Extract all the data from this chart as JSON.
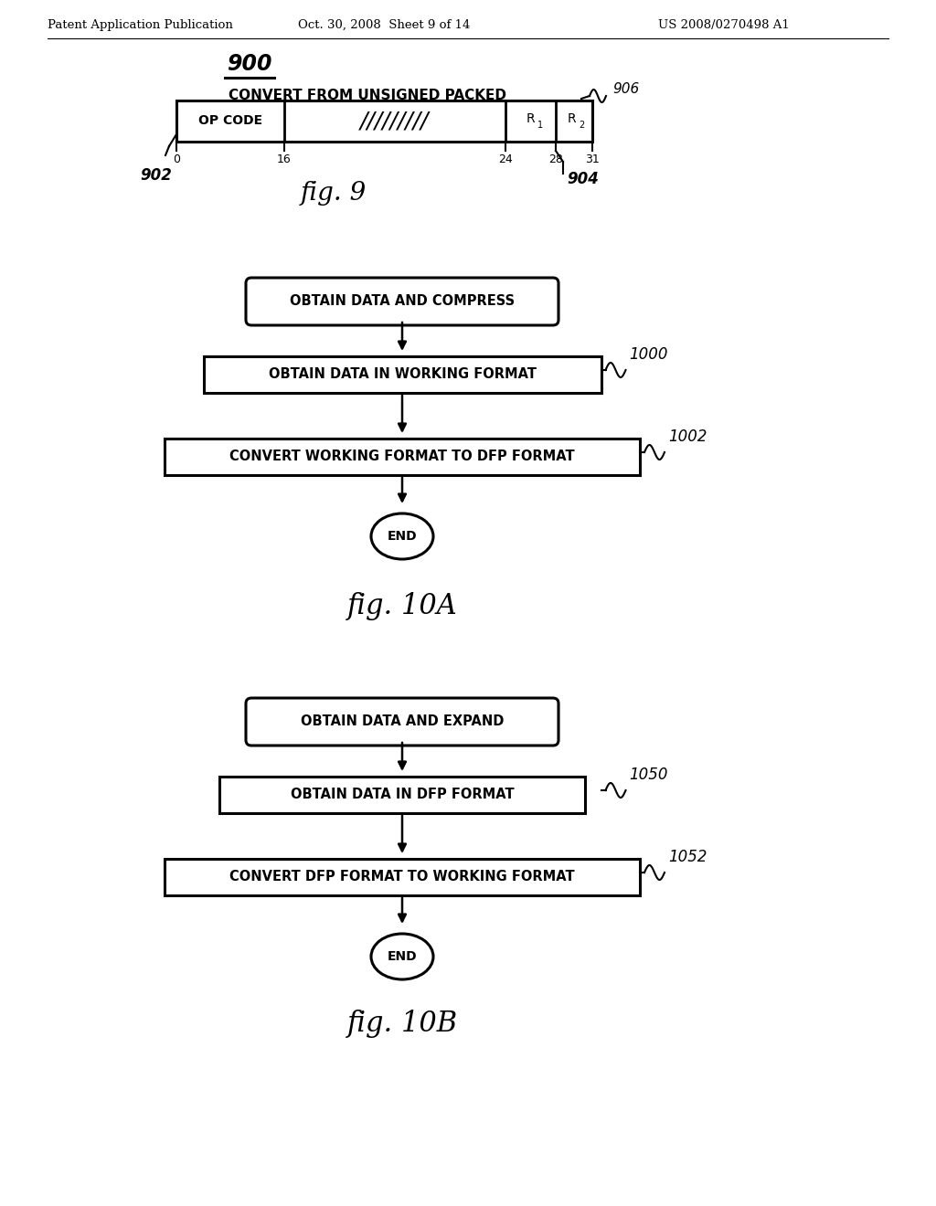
{
  "bg_color": "#ffffff",
  "header_left": "Patent Application Publication",
  "header_center": "Oct. 30, 2008  Sheet 9 of 14",
  "header_right": "US 2008/0270498 A1",
  "fig9": {
    "title": "900",
    "label": "CONVERT FROM UNSIGNED PACKED",
    "ref_906": "906",
    "ref_902": "902",
    "ref_904": "904",
    "ticks": [
      "0",
      "16",
      "24",
      "28",
      "31"
    ],
    "caption": "fig. 9"
  },
  "fig10a": {
    "boxes": [
      {
        "text": "OBTAIN DATA AND COMPRESS",
        "type": "rounded"
      },
      {
        "text": "OBTAIN DATA IN WORKING FORMAT",
        "type": "rect"
      },
      {
        "text": "CONVERT WORKING FORMAT TO DFP FORMAT",
        "type": "rect"
      }
    ],
    "labels": [
      "1000",
      "1002"
    ],
    "end_label": "END",
    "caption": "fig. 10A"
  },
  "fig10b": {
    "boxes": [
      {
        "text": "OBTAIN DATA AND EXPAND",
        "type": "rounded"
      },
      {
        "text": "OBTAIN DATA IN DFP FORMAT",
        "type": "rect"
      },
      {
        "text": "CONVERT DFP FORMAT TO WORKING FORMAT",
        "type": "rect"
      }
    ],
    "labels": [
      "1050",
      "1052"
    ],
    "end_label": "END",
    "caption": "fig. 10B"
  }
}
